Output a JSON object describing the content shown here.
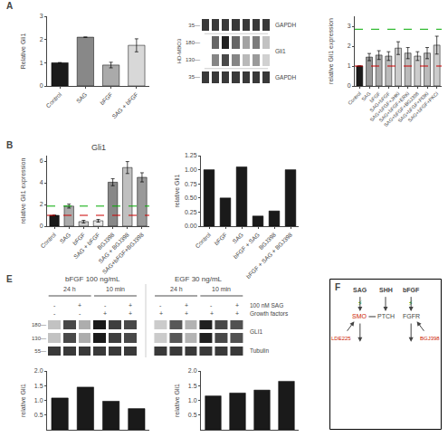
{
  "chart_data": [
    {
      "type": "bar",
      "categories": [
        "Control",
        "SAG",
        "bFGF",
        "SAG + bFGF"
      ],
      "values": [
        1.0,
        2.1,
        0.9,
        1.75
      ],
      "errors": [
        0.0,
        0.0,
        0.12,
        0.28
      ],
      "colors": [
        "#1a1a1a",
        "#888888",
        "#aaaaaa",
        "#d8d8d8"
      ],
      "ylabel": "Relative Gli1",
      "ylim": [
        0,
        3.0
      ],
      "yticks": [
        0,
        1,
        2,
        3
      ],
      "grid": false,
      "annotations": [
        "A"
      ]
    },
    {
      "type": "heatmap",
      "ylabel": "HD-MBO3",
      "categories": [
        "35—",
        "180—",
        "130—",
        "35—"
      ],
      "cells": [
        [
          0.7,
          0.7,
          0.7,
          0.7,
          0.7,
          0.7,
          0.7
        ],
        [
          0.05,
          0.55,
          0.78,
          0.55,
          0.35,
          0.48,
          0.25
        ],
        [
          0.05,
          0.45,
          0.65,
          0.45,
          0.28,
          0.38,
          0.2
        ],
        [
          0.7,
          0.7,
          0.7,
          0.7,
          0.7,
          0.7,
          0.7
        ]
      ],
      "annotations": [
        "GAPDH",
        "Gli1",
        "GAPDH"
      ],
      "tick_labels": "y",
      "grid": false
    },
    {
      "type": "bar",
      "categories": [
        "Control",
        "SAG",
        "bFGF",
        "SAG+bFGF",
        "SAG+bFGF+JHKi",
        "SAG+bFGF+ERKi",
        "SAG+bFGF+BGJ398",
        "SAG+bFGF+PI3Ki",
        "SAG+bFGF+PKCi"
      ],
      "values": [
        1.0,
        1.45,
        1.55,
        1.5,
        1.9,
        1.65,
        1.5,
        1.65,
        2.05
      ],
      "errors": [
        0.0,
        0.18,
        0.22,
        0.22,
        0.32,
        0.28,
        0.22,
        0.28,
        0.45
      ],
      "colors": [
        "#1a1a1a",
        "#999999",
        "#aaaaaa",
        "#bbbbbb",
        "#cccccc",
        "#bbbbbb",
        "#cccccc",
        "#bbbbbb",
        "#cccccc"
      ],
      "ylabel": "relative Gli1 expression",
      "ylim": [
        0,
        3.5
      ],
      "yticks": [
        0,
        1,
        2,
        3
      ],
      "grid": false,
      "reference_lines": [
        {
          "value": 2.85,
          "color": "#00aa00",
          "line_style": "dashed"
        },
        {
          "value": 1.0,
          "color": "#cc0000",
          "line_style": "dashed"
        }
      ]
    },
    {
      "type": "bar",
      "title": "Gli1",
      "categories": [
        "Control",
        "SAG",
        "bFGF",
        "SAG + bFGF",
        "BGJ398",
        "SAG + BGJ398",
        "SAG+bFGF+BGJ398"
      ],
      "values": [
        1.0,
        1.85,
        0.42,
        0.5,
        4.05,
        5.4,
        4.5
      ],
      "errors": [
        0.0,
        0.18,
        0.12,
        0.12,
        0.32,
        0.55,
        0.42
      ],
      "colors": [
        "#1a1a1a",
        "#aaaaaa",
        "#cccccc",
        "#e8e8e8",
        "#888888",
        "#c0c0c0",
        "#999999"
      ],
      "ylabel": "relative Gli1 expression",
      "ylim": [
        0,
        6.5
      ],
      "yticks": [
        0,
        2,
        4,
        6
      ],
      "grid": false,
      "reference_lines": [
        {
          "value": 1.85,
          "color": "#00aa00",
          "line_style": "dashed"
        },
        {
          "value": 1.0,
          "color": "#cc0000",
          "line_style": "dashed"
        }
      ],
      "annotations": [
        "B"
      ]
    },
    {
      "type": "bar",
      "categories": [
        "Control",
        "bFGF",
        "SAG",
        "bFGF + SAG",
        "BGJ398",
        "bFGF + SAG + BGJ398"
      ],
      "values": [
        1.0,
        0.5,
        1.05,
        0.18,
        0.27,
        1.0
      ],
      "colors": [
        "#1a1a1a",
        "#1a1a1a",
        "#1a1a1a",
        "#1a1a1a",
        "#1a1a1a",
        "#1a1a1a"
      ],
      "ylabel": "relative Gli1",
      "ylim": [
        0,
        1.25
      ],
      "yticks": [
        {
          "value": 0,
          "label": "0.00"
        },
        {
          "value": 0.25,
          "label": "0.25"
        },
        {
          "value": 0.5,
          "label": "0.50"
        },
        {
          "value": 0.75,
          "label": "0.75"
        },
        {
          "value": 1.0,
          "label": "1.00"
        },
        {
          "value": 1.25,
          "label": "1.25"
        }
      ],
      "grid": false
    },
    {
      "type": "heatmap",
      "categories": [
        "180—",
        "130—",
        "55—"
      ],
      "series": [
        {
          "name": "bFGF 100 ng/mL",
          "cells": [
            [
              0.25,
              0.65,
              0.32,
              0.8,
              0.68,
              0.65
            ],
            [
              0.25,
              0.65,
              0.32,
              0.8,
              0.68,
              0.65
            ],
            [
              0.7,
              0.7,
              0.7,
              0.7,
              0.7,
              0.7
            ]
          ]
        },
        {
          "name": "EGF 30 ng/mL",
          "cells": [
            [
              0.22,
              0.6,
              0.3,
              0.78,
              0.65,
              0.62
            ],
            [
              0.22,
              0.6,
              0.3,
              0.78,
              0.65,
              0.62
            ],
            [
              0.7,
              0.7,
              0.7,
              0.7,
              0.7,
              0.7
            ]
          ]
        }
      ],
      "conditions": [
        {
          "name": "100 nM SAG",
          "labels": [
            "-",
            "+",
            "-",
            "+",
            "-",
            "+",
            "-",
            "+"
          ]
        },
        {
          "name": "Growth factors",
          "labels": [
            "-",
            "-",
            "+",
            "+",
            "+",
            "+",
            "+",
            "+"
          ]
        }
      ],
      "annotations": [
        "E",
        "24 h",
        "10 min",
        "24 h",
        "10 min",
        "GLI1",
        "Tubulin"
      ],
      "tick_labels": "y",
      "grid": false
    },
    {
      "type": "bar",
      "values": [
        1.08,
        1.45,
        0.97,
        0.72
      ],
      "colors": [
        "#1a1a1a",
        "#1a1a1a",
        "#1a1a1a",
        "#1a1a1a"
      ],
      "ylabel": "relative Gli1",
      "ylim": [
        0,
        2.0
      ],
      "yticks": [
        0.5,
        {
          "value": 1.0,
          "label": "1.0"
        },
        1.5,
        {
          "value": 2.0,
          "label": "2.0"
        }
      ],
      "tick_labels": "y",
      "grid": false
    },
    {
      "type": "bar",
      "values": [
        1.15,
        1.25,
        1.35,
        1.65
      ],
      "colors": [
        "#1a1a1a",
        "#1a1a1a",
        "#1a1a1a",
        "#1a1a1a"
      ],
      "ylabel": "relative Gli1",
      "ylim": [
        0,
        2.0
      ],
      "yticks": [
        0.5,
        {
          "value": 1.0,
          "label": "1.0"
        },
        1.5,
        {
          "value": 2.0,
          "label": "2.0"
        }
      ],
      "tick_labels": "y",
      "grid": false
    },
    {
      "type": "diagram",
      "annotations": [
        {
          "text": "F"
        },
        {
          "text": "SAG"
        },
        {
          "text": "SHH"
        },
        {
          "text": "bFGF"
        },
        {
          "text": "⚡",
          "color": "#00aa00"
        },
        {
          "text": "⚡",
          "color": "#00aa00"
        },
        {
          "text": "LDE225",
          "color": "#cc2200"
        },
        {
          "text": "SMO",
          "color": "#cc2200"
        },
        {
          "text": "PTCH"
        },
        {
          "text": "FGFR"
        },
        {
          "text": "BGJ398",
          "color": "#cc2200"
        }
      ]
    }
  ]
}
